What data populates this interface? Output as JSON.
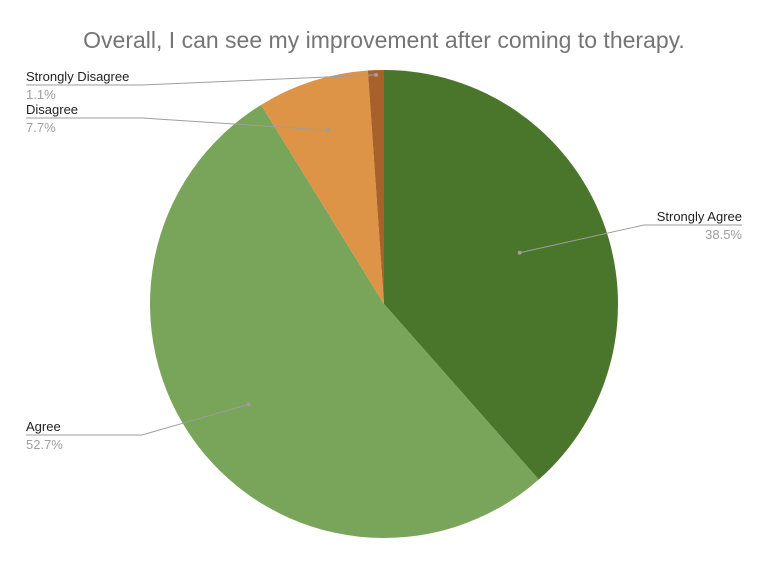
{
  "chart_data": {
    "type": "pie",
    "title": "Overall, I can see my improvement after coming to therapy.",
    "start_angle_deg": 0,
    "direction": "clockwise",
    "slices": [
      {
        "label": "Strongly Agree",
        "value": 38.5,
        "display": "38.5%",
        "color": "#4a762b"
      },
      {
        "label": "Agree",
        "value": 52.7,
        "display": "52.7%",
        "color": "#79a55a"
      },
      {
        "label": "Disagree",
        "value": 7.7,
        "display": "7.7%",
        "color": "#dd9447"
      },
      {
        "label": "Strongly Disagree",
        "value": 1.1,
        "display": "1.1%",
        "color": "#a8612a"
      }
    ],
    "legend": "none"
  }
}
